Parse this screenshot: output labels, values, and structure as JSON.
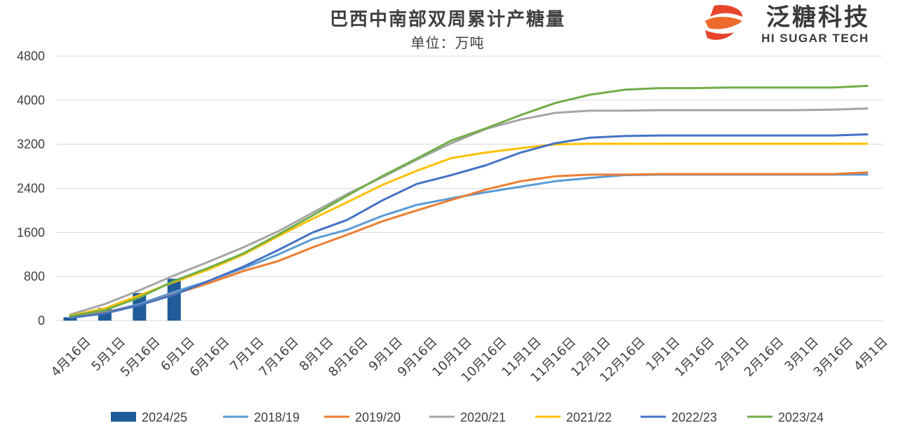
{
  "logo": {
    "name_cn": "泛糖科技",
    "name_en": "HI SUGAR TECH"
  },
  "chart_data": {
    "type": "line",
    "title": "巴西中南部双周累计产糖量",
    "subtitle": "单位：万吨",
    "categories": [
      "4月16日",
      "5月1日",
      "5月16日",
      "6月1日",
      "6月16日",
      "7月1日",
      "7月16日",
      "8月1日",
      "8月16日",
      "9月1日",
      "9月16日",
      "10月1日",
      "10月16日",
      "11月1日",
      "11月16日",
      "12月1日",
      "12月16日",
      "1月1日",
      "1月16日",
      "2月1日",
      "2月16日",
      "3月1日",
      "3月16日",
      "4月1日"
    ],
    "y_ticks": [
      "0",
      "800",
      "1600",
      "2400",
      "3200",
      "4000",
      "4800"
    ],
    "ylim": [
      0,
      4800
    ],
    "grid": true,
    "legend_position": "bottom",
    "bar_series": {
      "name": "2024/25",
      "color": "#1f5c99",
      "values": [
        60,
        230,
        500,
        760
      ]
    },
    "series": [
      {
        "name": "2018/19",
        "color": "#5b9bd5",
        "values": [
          50,
          150,
          300,
          520,
          720,
          950,
          1200,
          1480,
          1650,
          1900,
          2100,
          2220,
          2330,
          2430,
          2530,
          2590,
          2640,
          2650,
          2650,
          2650,
          2650,
          2650,
          2650,
          2650
        ]
      },
      {
        "name": "2019/20",
        "color": "#ed7d31",
        "values": [
          50,
          140,
          280,
          480,
          680,
          900,
          1080,
          1330,
          1560,
          1800,
          2000,
          2190,
          2380,
          2530,
          2620,
          2650,
          2650,
          2660,
          2660,
          2660,
          2660,
          2660,
          2660,
          2690
        ]
      },
      {
        "name": "2020/21",
        "color": "#a5a5a5",
        "values": [
          110,
          300,
          550,
          820,
          1070,
          1330,
          1620,
          1960,
          2300,
          2600,
          2920,
          3220,
          3480,
          3650,
          3770,
          3810,
          3810,
          3820,
          3820,
          3820,
          3820,
          3820,
          3830,
          3850
        ]
      },
      {
        "name": "2021/22",
        "color": "#ffc000",
        "values": [
          90,
          220,
          460,
          700,
          930,
          1200,
          1530,
          1850,
          2150,
          2460,
          2720,
          2950,
          3050,
          3130,
          3200,
          3210,
          3210,
          3210,
          3210,
          3210,
          3210,
          3210,
          3210,
          3210
        ]
      },
      {
        "name": "2022/23",
        "color": "#4472c4",
        "values": [
          50,
          130,
          280,
          470,
          720,
          980,
          1280,
          1600,
          1830,
          2180,
          2480,
          2640,
          2820,
          3050,
          3220,
          3320,
          3350,
          3360,
          3360,
          3360,
          3360,
          3360,
          3360,
          3380
        ]
      },
      {
        "name": "2023/24",
        "color": "#70ad47",
        "values": [
          80,
          190,
          420,
          720,
          960,
          1220,
          1560,
          1910,
          2270,
          2620,
          2940,
          3270,
          3490,
          3730,
          3950,
          4100,
          4190,
          4220,
          4220,
          4230,
          4230,
          4230,
          4230,
          4260
        ]
      }
    ]
  }
}
